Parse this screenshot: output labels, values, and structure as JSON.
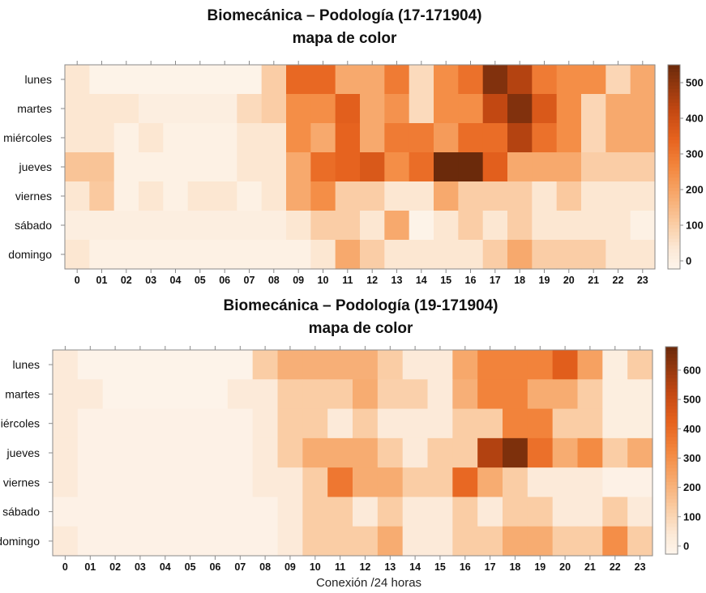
{
  "chart_data": [
    {
      "type": "heatmap",
      "title": "Biomecánica – Podología (17-171904)",
      "subtitle": "mapa de color",
      "xlabel": "",
      "rows": [
        "lunes",
        "martes",
        "miércoles",
        "jueves",
        "viernes",
        "sábado",
        "domingo"
      ],
      "columns": [
        "0",
        "01",
        "02",
        "03",
        "04",
        "05",
        "06",
        "07",
        "08",
        "09",
        "10",
        "11",
        "12",
        "13",
        "14",
        "15",
        "16",
        "17",
        "18",
        "19",
        "20",
        "21",
        "22",
        "23"
      ],
      "values": [
        [
          60,
          10,
          10,
          10,
          10,
          10,
          10,
          10,
          120,
          340,
          340,
          200,
          200,
          300,
          90,
          260,
          320,
          520,
          450,
          300,
          260,
          260,
          100,
          200
        ],
        [
          60,
          60,
          60,
          30,
          30,
          30,
          30,
          90,
          120,
          260,
          260,
          360,
          200,
          250,
          90,
          260,
          260,
          430,
          520,
          380,
          260,
          100,
          200,
          200
        ],
        [
          60,
          60,
          20,
          60,
          20,
          20,
          20,
          60,
          60,
          260,
          200,
          350,
          200,
          300,
          300,
          230,
          330,
          330,
          450,
          320,
          260,
          100,
          200,
          200
        ],
        [
          140,
          140,
          20,
          20,
          20,
          20,
          20,
          60,
          60,
          200,
          330,
          350,
          380,
          260,
          330,
          560,
          560,
          360,
          200,
          200,
          200,
          120,
          120,
          120
        ],
        [
          60,
          130,
          20,
          60,
          20,
          60,
          60,
          20,
          60,
          200,
          260,
          120,
          120,
          60,
          60,
          200,
          120,
          120,
          120,
          60,
          130,
          60,
          60,
          60
        ],
        [
          30,
          30,
          30,
          30,
          30,
          30,
          30,
          30,
          30,
          60,
          120,
          120,
          60,
          200,
          10,
          60,
          120,
          60,
          120,
          60,
          60,
          60,
          60,
          20
        ],
        [
          60,
          20,
          20,
          20,
          20,
          20,
          20,
          20,
          20,
          20,
          60,
          200,
          120,
          60,
          60,
          60,
          60,
          120,
          200,
          120,
          120,
          120,
          60,
          60
        ]
      ],
      "color_scale": {
        "min": 0,
        "max": 550,
        "low_color": "#fdf5ec",
        "high_color": "#6b2a0b",
        "ticks": [
          0,
          100,
          200,
          300,
          400,
          500
        ]
      },
      "grid": false,
      "legend": "right"
    },
    {
      "type": "heatmap",
      "title": "Biomecánica – Podología (19-171904)",
      "subtitle": "mapa de color",
      "xlabel": "Conexión /24 horas",
      "rows": [
        "lunes",
        "martes",
        "miércoles",
        "jueves",
        "viernes",
        "sábado",
        "domingo"
      ],
      "columns": [
        "0",
        "01",
        "02",
        "03",
        "04",
        "05",
        "06",
        "07",
        "08",
        "09",
        "10",
        "11",
        "12",
        "13",
        "14",
        "15",
        "16",
        "17",
        "18",
        "19",
        "20",
        "21",
        "22",
        "23"
      ],
      "values": [
        [
          60,
          10,
          10,
          10,
          10,
          10,
          10,
          10,
          150,
          230,
          230,
          230,
          230,
          150,
          60,
          60,
          250,
          350,
          350,
          350,
          450,
          270,
          40,
          150
        ],
        [
          60,
          60,
          10,
          10,
          10,
          10,
          10,
          60,
          60,
          150,
          150,
          150,
          240,
          140,
          140,
          60,
          230,
          350,
          350,
          240,
          240,
          150,
          40,
          40
        ],
        [
          60,
          20,
          20,
          20,
          20,
          20,
          20,
          20,
          60,
          150,
          150,
          60,
          150,
          60,
          60,
          60,
          150,
          150,
          350,
          350,
          150,
          150,
          40,
          40
        ],
        [
          60,
          20,
          20,
          20,
          20,
          20,
          20,
          20,
          60,
          150,
          240,
          240,
          240,
          150,
          60,
          150,
          150,
          560,
          650,
          400,
          240,
          330,
          150,
          240
        ],
        [
          60,
          20,
          20,
          20,
          20,
          20,
          20,
          20,
          60,
          60,
          150,
          380,
          240,
          240,
          150,
          150,
          420,
          240,
          150,
          60,
          60,
          60,
          20,
          20
        ],
        [
          20,
          20,
          20,
          20,
          20,
          20,
          20,
          20,
          20,
          60,
          150,
          150,
          60,
          150,
          60,
          60,
          150,
          60,
          150,
          150,
          60,
          60,
          150,
          60
        ],
        [
          60,
          20,
          20,
          20,
          20,
          20,
          20,
          20,
          20,
          60,
          150,
          150,
          150,
          240,
          60,
          60,
          150,
          150,
          240,
          240,
          150,
          150,
          320,
          150
        ]
      ],
      "color_scale": {
        "min": 0,
        "max": 680,
        "low_color": "#fdf5ec",
        "high_color": "#6b2a0b",
        "ticks": [
          0,
          100,
          200,
          300,
          400,
          500,
          600
        ]
      },
      "grid": false,
      "legend": "right"
    }
  ]
}
